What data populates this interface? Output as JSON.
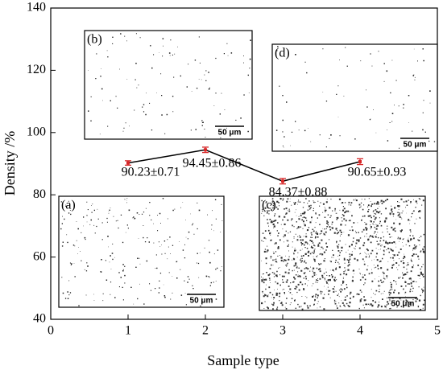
{
  "chart_data": {
    "type": "line",
    "x_label": "Sample type",
    "y_label": "Density /%",
    "x": [
      1,
      2,
      3,
      4
    ],
    "values": [
      90.23,
      94.45,
      84.37,
      90.65
    ],
    "errors": [
      0.71,
      0.86,
      0.88,
      0.93
    ],
    "value_labels": [
      "90.23±0.71",
      "94.45±0.86",
      "84.37±0.88",
      "90.65±0.93"
    ],
    "line_color": "#000000",
    "marker_color": "#d62728",
    "xlim": [
      0,
      5
    ],
    "xticks": [
      0,
      1,
      2,
      3,
      4,
      5
    ],
    "ylim": [
      40,
      140
    ],
    "yticks": [
      40,
      60,
      80,
      100,
      120,
      140
    ],
    "insets": [
      {
        "label": "(a)",
        "scale_bar": "50 μm"
      },
      {
        "label": "(b)",
        "scale_bar": "50 μm"
      },
      {
        "label": "(c)",
        "scale_bar": "50 μm"
      },
      {
        "label": "(d)",
        "scale_bar": "50 μm"
      }
    ]
  }
}
